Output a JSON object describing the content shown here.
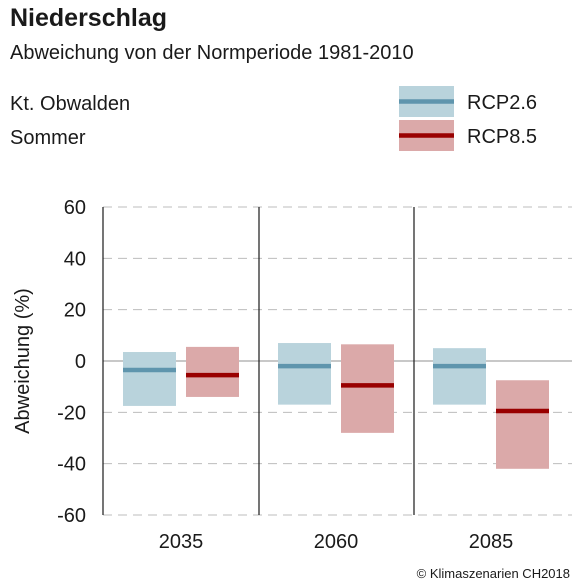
{
  "header": {
    "title": "Niederschlag",
    "subtitle": "Abweichung von der Normperiode 1981-2010",
    "region": "Kt. Obwalden",
    "season": "Sommer"
  },
  "footer": {
    "copyright": "© Klimaszenarien CH2018"
  },
  "colors": {
    "rcp26_box": "#b9d3dc",
    "rcp26_line": "#5f95ad",
    "rcp85_box": "#dba9a9",
    "rcp85_line": "#990000",
    "grid": "#bdbdbd",
    "axis": "#1a1a1a"
  },
  "chart_data": {
    "type": "bar",
    "categories": [
      "2035",
      "2060",
      "2085"
    ],
    "ylabel": "Abweichung (%)",
    "ylim": [
      -60,
      60
    ],
    "yticks": [
      60,
      40,
      20,
      0,
      -20,
      -40,
      -60
    ],
    "grid": true,
    "legend_position": "top-right",
    "series": [
      {
        "name": "RCP2.6",
        "low": [
          -17.5,
          -17,
          -17
        ],
        "median": [
          -3.5,
          -2,
          -2
        ],
        "high": [
          3.5,
          7,
          5
        ]
      },
      {
        "name": "RCP8.5",
        "low": [
          -14,
          -28,
          -42
        ],
        "median": [
          -5.5,
          -9.5,
          -19.5
        ],
        "high": [
          5.5,
          6.5,
          -7.5
        ]
      }
    ]
  }
}
